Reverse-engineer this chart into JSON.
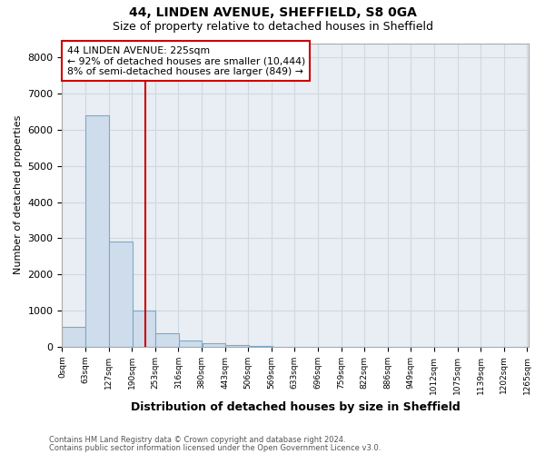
{
  "title": "44, LINDEN AVENUE, SHEFFIELD, S8 0GA",
  "subtitle": "Size of property relative to detached houses in Sheffield",
  "xlabel": "Distribution of detached houses by size in Sheffield",
  "ylabel": "Number of detached properties",
  "footnote1": "Contains HM Land Registry data © Crown copyright and database right 2024.",
  "footnote2": "Contains public sector information licensed under the Open Government Licence v3.0.",
  "annotation_title": "44 LINDEN AVENUE: 225sqm",
  "annotation_line1": "← 92% of detached houses are smaller (10,444)",
  "annotation_line2": "8% of semi-detached houses are larger (849) →",
  "property_size": 225,
  "bar_left_edges": [
    0,
    63,
    127,
    190,
    253,
    316,
    380,
    443,
    506,
    569,
    633,
    696,
    759,
    822,
    886,
    949,
    1012,
    1075,
    1139,
    1202
  ],
  "bar_heights": [
    560,
    6400,
    2900,
    1000,
    370,
    160,
    105,
    55,
    25,
    0,
    0,
    0,
    0,
    0,
    0,
    0,
    0,
    0,
    0,
    0
  ],
  "bin_width": 63,
  "tick_labels": [
    "0sqm",
    "63sqm",
    "127sqm",
    "190sqm",
    "253sqm",
    "316sqm",
    "380sqm",
    "443sqm",
    "506sqm",
    "569sqm",
    "633sqm",
    "696sqm",
    "759sqm",
    "822sqm",
    "886sqm",
    "949sqm",
    "1012sqm",
    "1075sqm",
    "1139sqm",
    "1202sqm",
    "1265sqm"
  ],
  "bar_color": "#cfdcec",
  "bar_edge_color": "#7aaac8",
  "vline_color": "#cc0000",
  "vline_x": 225,
  "ylim": [
    0,
    8400
  ],
  "yticks": [
    0,
    1000,
    2000,
    3000,
    4000,
    5000,
    6000,
    7000,
    8000
  ],
  "annotation_box_color": "#ffffff",
  "annotation_box_edge": "#cc0000",
  "grid_color": "#d0d8e0",
  "plot_bg_color": "#e8eef4",
  "fig_bg_color": "#ffffff"
}
